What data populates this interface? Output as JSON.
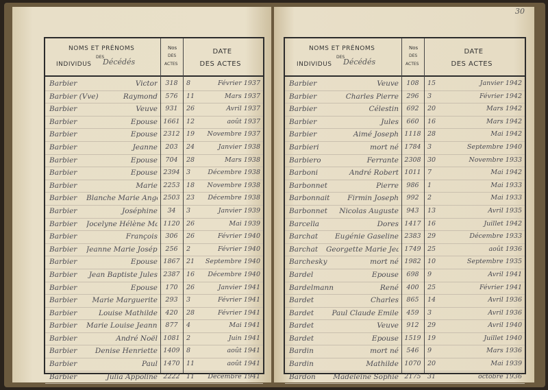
{
  "header": {
    "names_l1": "NOMS ET PRÉNOMS",
    "names_des": "DES",
    "names_l2": "INDIVIDUS",
    "names_hand": "Décédés",
    "num_l1": "Nos",
    "num_l2": "DES",
    "num_l3": "ACTES",
    "date_l1": "DATE",
    "date_l2": "DES ACTES"
  },
  "page_number": "30",
  "left_rows": [
    {
      "surname": "Barbier",
      "given": "Victor",
      "num": "318",
      "day": "8",
      "month_year": "Février 1937"
    },
    {
      "surname": "Barbier (Vve)",
      "given": "Raymond",
      "num": "576",
      "day": "11",
      "month_year": "Mars 1937"
    },
    {
      "surname": "Barbier",
      "given": "Veuve",
      "num": "931",
      "day": "26",
      "month_year": "Avril 1937"
    },
    {
      "surname": "Barbier",
      "given": "Epouse",
      "num": "1661",
      "day": "12",
      "month_year": "août 1937"
    },
    {
      "surname": "Barbier",
      "given": "Epouse",
      "num": "2312",
      "day": "19",
      "month_year": "Novembre 1937"
    },
    {
      "surname": "Barbier",
      "given": "Jeanne",
      "num": "203",
      "day": "24",
      "month_year": "Janvier 1938"
    },
    {
      "surname": "Barbier",
      "given": "Epouse",
      "num": "704",
      "day": "28",
      "month_year": "Mars 1938"
    },
    {
      "surname": "Barbier",
      "given": "Epouse",
      "num": "2394",
      "day": "3",
      "month_year": "Décembre 1938"
    },
    {
      "surname": "Barbier",
      "given": "Marie",
      "num": "2253",
      "day": "18",
      "month_year": "Novembre 1938"
    },
    {
      "surname": "Barbier",
      "given": "Blanche Marie Angèle",
      "num": "2503",
      "day": "23",
      "month_year": "Décembre 1938"
    },
    {
      "surname": "Barbier",
      "given": "Joséphine",
      "num": "34",
      "day": "3",
      "month_year": "Janvier 1939"
    },
    {
      "surname": "Barbier",
      "given": "Jocelyne Hélène Marcelle",
      "num": "1120",
      "day": "26",
      "month_year": "Mai 1939"
    },
    {
      "surname": "Barbier",
      "given": "François",
      "num": "306",
      "day": "26",
      "month_year": "Février 1940"
    },
    {
      "surname": "Barbier",
      "given": "Jeanne Marie Joséphine",
      "num": "256",
      "day": "2",
      "month_year": "Février 1940"
    },
    {
      "surname": "Barbier",
      "given": "Epouse",
      "num": "1867",
      "day": "21",
      "month_year": "Septembre 1940"
    },
    {
      "surname": "Barbier",
      "given": "Jean Baptiste Jules",
      "num": "2387",
      "day": "16",
      "month_year": "Décembre 1940"
    },
    {
      "surname": "Barbier",
      "given": "Epouse",
      "num": "170",
      "day": "26",
      "month_year": "Janvier 1941"
    },
    {
      "surname": "Barbier",
      "given": "Marie Marguerite",
      "num": "293",
      "day": "3",
      "month_year": "Février 1941"
    },
    {
      "surname": "Barbier",
      "given": "Louise Mathilde",
      "num": "420",
      "day": "28",
      "month_year": "Février 1941"
    },
    {
      "surname": "Barbier",
      "given": "Marie Louise Jeanne",
      "num": "877",
      "day": "4",
      "month_year": "Mai 1941"
    },
    {
      "surname": "Barbier",
      "given": "André Noël",
      "num": "1081",
      "day": "2",
      "month_year": "Juin 1941"
    },
    {
      "surname": "Barbier",
      "given": "Denise Henriette",
      "num": "1409",
      "day": "8",
      "month_year": "août 1941"
    },
    {
      "surname": "Barbier",
      "given": "Paul",
      "num": "1470",
      "day": "11",
      "month_year": "août 1941"
    },
    {
      "surname": "Barbier",
      "given": "Julia Appoline",
      "num": "2222",
      "day": "11",
      "month_year": "Décembre 1941"
    }
  ],
  "right_rows": [
    {
      "surname": "Barbier",
      "given": "Veuve",
      "num": "108",
      "day": "15",
      "month_year": "Janvier 1942"
    },
    {
      "surname": "Barbier",
      "given": "Charles Pierre",
      "num": "296",
      "day": "3",
      "month_year": "Février 1942"
    },
    {
      "surname": "Barbier",
      "given": "Célestin",
      "num": "692",
      "day": "20",
      "month_year": "Mars 1942"
    },
    {
      "surname": "Barbier",
      "given": "Jules",
      "num": "660",
      "day": "16",
      "month_year": "Mars 1942"
    },
    {
      "surname": "Barbier",
      "given": "Aimé Joseph",
      "num": "1118",
      "day": "28",
      "month_year": "Mai 1942"
    },
    {
      "surname": "Barbieri",
      "given": "mort né",
      "num": "1784",
      "day": "3",
      "month_year": "Septembre 1940"
    },
    {
      "surname": "Barbiero",
      "given": "Ferrante",
      "num": "2308",
      "day": "30",
      "month_year": "Novembre 1933"
    },
    {
      "surname": "Barboni",
      "given": "André Robert",
      "num": "1011",
      "day": "7",
      "month_year": "Mai 1942"
    },
    {
      "surname": "Barbonnet",
      "given": "Pierre",
      "num": "986",
      "day": "1",
      "month_year": "Mai 1933"
    },
    {
      "surname": "Barbonnait",
      "given": "Firmin Joseph",
      "num": "992",
      "day": "2",
      "month_year": "Mai 1933"
    },
    {
      "surname": "Barbonnet",
      "given": "Nicolas Auguste",
      "num": "943",
      "day": "13",
      "month_year": "Avril 1935"
    },
    {
      "surname": "Barcella",
      "given": "Dores",
      "num": "1417",
      "day": "16",
      "month_year": "Juillet 1942"
    },
    {
      "surname": "Barchat",
      "given": "Eugénie Gaseline",
      "num": "2383",
      "day": "29",
      "month_year": "Décembre 1933"
    },
    {
      "surname": "Barchat",
      "given": "Georgette Marie Jeanne",
      "num": "1749",
      "day": "25",
      "month_year": "août 1936"
    },
    {
      "surname": "Barchesky",
      "given": "mort né",
      "num": "1982",
      "day": "10",
      "month_year": "Septembre 1935"
    },
    {
      "surname": "Bardel",
      "given": "Epouse",
      "num": "698",
      "day": "9",
      "month_year": "Avril 1941"
    },
    {
      "surname": "Bardelmann",
      "given": "René",
      "num": "400",
      "day": "25",
      "month_year": "Février 1941"
    },
    {
      "surname": "Bardet",
      "given": "Charles",
      "num": "865",
      "day": "14",
      "month_year": "Avril 1936"
    },
    {
      "surname": "Bardet",
      "given": "Paul Claude Emile",
      "num": "459",
      "day": "3",
      "month_year": "Avril 1936"
    },
    {
      "surname": "Bardet",
      "given": "Veuve",
      "num": "912",
      "day": "29",
      "month_year": "Avril 1940"
    },
    {
      "surname": "Bardet",
      "given": "Epouse",
      "num": "1519",
      "day": "19",
      "month_year": "Juillet 1940"
    },
    {
      "surname": "Bardin",
      "given": "mort né",
      "num": "546",
      "day": "9",
      "month_year": "Mars 1936"
    },
    {
      "surname": "Bardin",
      "given": "Mathilde",
      "num": "1070",
      "day": "20",
      "month_year": "Mai 1939"
    },
    {
      "surname": "Bardon",
      "given": "Madeleine Sophie",
      "num": "2175",
      "day": "31",
      "month_year": "octobre 1936"
    }
  ]
}
